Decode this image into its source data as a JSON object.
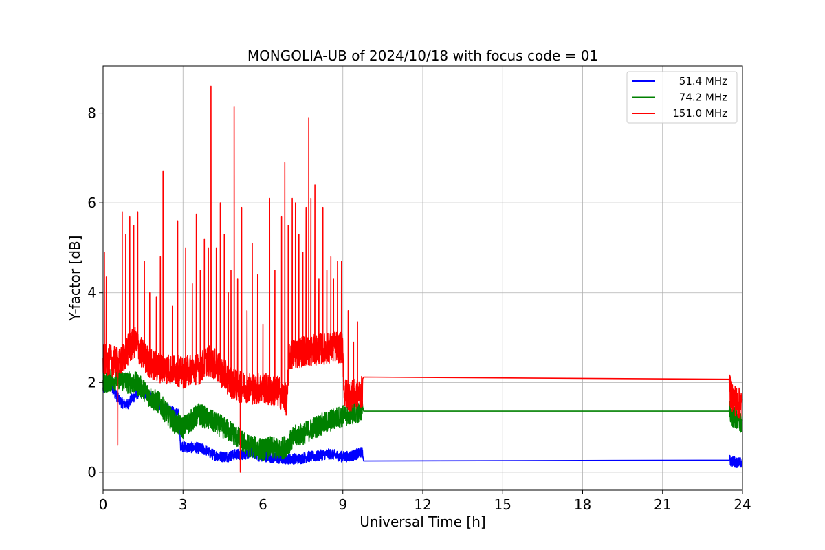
{
  "chart_data": {
    "type": "line",
    "title": "MONGOLIA-UB of 2024/10/18 with focus code = 01",
    "xlabel": "Universal Time [h]",
    "ylabel": "Y-factor [dB]",
    "xlim": [
      0,
      24
    ],
    "ylim": [
      -0.4,
      9.05
    ],
    "xticks": [
      0,
      3,
      6,
      9,
      12,
      15,
      18,
      21,
      24
    ],
    "yticks": [
      0,
      2,
      4,
      6,
      8
    ],
    "grid": true,
    "legend_position": "top-right",
    "series": [
      {
        "name": "51.4 MHz",
        "color": "#0000ff",
        "x": [
          0,
          0.3,
          0.5,
          0.7,
          0.9,
          1.1,
          1.3,
          1.5,
          1.7,
          1.9,
          2.1,
          2.3,
          2.5,
          2.7,
          2.85,
          2.9,
          3.2,
          3.5,
          3.8,
          4.1,
          4.4,
          4.7,
          5.0,
          5.3,
          5.6,
          5.9,
          6.2,
          6.5,
          6.8,
          7.1,
          7.4,
          7.7,
          8.0,
          8.3,
          8.6,
          8.9,
          9.2,
          9.5,
          9.75,
          9.78,
          23.5,
          23.55,
          23.8,
          24.0
        ],
        "y": [
          1.85,
          1.95,
          1.7,
          1.55,
          1.5,
          1.65,
          1.75,
          1.8,
          1.7,
          1.6,
          1.5,
          1.45,
          1.4,
          1.3,
          1.3,
          0.6,
          0.55,
          0.55,
          0.5,
          0.4,
          0.35,
          0.35,
          0.4,
          0.4,
          0.45,
          0.35,
          0.35,
          0.3,
          0.3,
          0.3,
          0.3,
          0.35,
          0.35,
          0.4,
          0.4,
          0.35,
          0.35,
          0.4,
          0.45,
          0.25,
          0.27,
          0.25,
          0.22,
          0.2
        ],
        "noise": 0.12
      },
      {
        "name": "74.2 MHz",
        "color": "#008000",
        "x": [
          0,
          0.3,
          0.6,
          0.9,
          1.2,
          1.5,
          1.8,
          2.1,
          2.4,
          2.7,
          3.0,
          3.3,
          3.6,
          3.9,
          4.2,
          4.5,
          4.8,
          5.1,
          5.4,
          5.7,
          6.0,
          6.3,
          6.6,
          6.9,
          7.2,
          7.5,
          7.8,
          8.1,
          8.4,
          8.7,
          9.0,
          9.3,
          9.6,
          9.75,
          9.78,
          23.5,
          23.55,
          23.8,
          24.0
        ],
        "y": [
          2.0,
          2.05,
          2.1,
          2.0,
          2.0,
          1.85,
          1.65,
          1.55,
          1.3,
          1.1,
          1.0,
          1.15,
          1.3,
          1.2,
          1.1,
          1.0,
          0.9,
          0.75,
          0.6,
          0.55,
          0.5,
          0.55,
          0.5,
          0.6,
          0.8,
          0.85,
          0.95,
          1.05,
          1.1,
          1.2,
          1.25,
          1.3,
          1.35,
          1.4,
          1.36,
          1.36,
          1.3,
          1.15,
          1.05
        ],
        "noise": 0.25
      },
      {
        "name": "151.0 MHz",
        "color": "#ff0000",
        "x": [
          0,
          0.3,
          0.6,
          0.9,
          1.2,
          1.5,
          1.8,
          2.1,
          2.4,
          2.7,
          3.0,
          3.3,
          3.6,
          3.9,
          4.2,
          4.5,
          4.8,
          5.1,
          5.4,
          5.7,
          6.0,
          6.3,
          6.6,
          6.9,
          7.0,
          7.2,
          7.5,
          7.8,
          8.1,
          8.4,
          8.7,
          9.0,
          9.05,
          9.3,
          9.6,
          9.75,
          9.78,
          23.5,
          23.55,
          23.8,
          24.0
        ],
        "y": [
          2.5,
          2.5,
          2.4,
          2.7,
          2.9,
          2.6,
          2.4,
          2.35,
          2.3,
          2.3,
          2.2,
          2.3,
          2.3,
          2.5,
          2.4,
          2.2,
          2.0,
          1.9,
          1.9,
          1.85,
          1.9,
          1.8,
          1.8,
          1.6,
          2.6,
          2.65,
          2.7,
          2.7,
          2.75,
          2.75,
          2.8,
          2.75,
          1.75,
          1.7,
          1.75,
          1.8,
          2.12,
          2.07,
          1.75,
          1.55,
          1.5
        ],
        "noise": 0.35,
        "spikes": [
          {
            "x": 0.05,
            "y": 4.9
          },
          {
            "x": 0.12,
            "y": 4.35
          },
          {
            "x": 0.55,
            "y": 0.6
          },
          {
            "x": 0.72,
            "y": 5.8
          },
          {
            "x": 0.85,
            "y": 5.3
          },
          {
            "x": 1.0,
            "y": 5.7
          },
          {
            "x": 1.15,
            "y": 5.5
          },
          {
            "x": 1.3,
            "y": 5.8
          },
          {
            "x": 1.55,
            "y": 4.7
          },
          {
            "x": 1.75,
            "y": 4.0
          },
          {
            "x": 2.0,
            "y": 3.9
          },
          {
            "x": 2.15,
            "y": 4.8
          },
          {
            "x": 2.25,
            "y": 6.7
          },
          {
            "x": 2.6,
            "y": 3.7
          },
          {
            "x": 2.8,
            "y": 5.6
          },
          {
            "x": 3.1,
            "y": 5.0
          },
          {
            "x": 3.35,
            "y": 4.2
          },
          {
            "x": 3.5,
            "y": 5.75
          },
          {
            "x": 3.65,
            "y": 4.5
          },
          {
            "x": 3.8,
            "y": 5.2
          },
          {
            "x": 3.95,
            "y": 5.0
          },
          {
            "x": 4.05,
            "y": 8.6
          },
          {
            "x": 4.25,
            "y": 5.0
          },
          {
            "x": 4.4,
            "y": 6.0
          },
          {
            "x": 4.55,
            "y": 5.3
          },
          {
            "x": 4.7,
            "y": 4.0
          },
          {
            "x": 4.8,
            "y": 4.5
          },
          {
            "x": 4.92,
            "y": 8.15
          },
          {
            "x": 5.05,
            "y": 4.3
          },
          {
            "x": 5.15,
            "y": 0.0
          },
          {
            "x": 5.2,
            "y": 5.9
          },
          {
            "x": 5.4,
            "y": 3.6
          },
          {
            "x": 5.6,
            "y": 5.1
          },
          {
            "x": 5.8,
            "y": 4.4
          },
          {
            "x": 6.0,
            "y": 3.3
          },
          {
            "x": 6.25,
            "y": 6.1
          },
          {
            "x": 6.45,
            "y": 4.5
          },
          {
            "x": 6.7,
            "y": 5.7
          },
          {
            "x": 6.82,
            "y": 6.9
          },
          {
            "x": 6.95,
            "y": 5.5
          },
          {
            "x": 7.1,
            "y": 6.1
          },
          {
            "x": 7.22,
            "y": 6.0
          },
          {
            "x": 7.35,
            "y": 5.3
          },
          {
            "x": 7.5,
            "y": 4.9
          },
          {
            "x": 7.62,
            "y": 5.9
          },
          {
            "x": 7.72,
            "y": 7.9
          },
          {
            "x": 7.8,
            "y": 6.1
          },
          {
            "x": 7.95,
            "y": 6.4
          },
          {
            "x": 8.1,
            "y": 4.3
          },
          {
            "x": 8.25,
            "y": 5.9
          },
          {
            "x": 8.4,
            "y": 4.5
          },
          {
            "x": 8.55,
            "y": 4.8
          },
          {
            "x": 8.65,
            "y": 4.3
          },
          {
            "x": 8.8,
            "y": 4.7
          },
          {
            "x": 8.95,
            "y": 4.7
          },
          {
            "x": 9.2,
            "y": 3.6
          },
          {
            "x": 9.4,
            "y": 2.9
          },
          {
            "x": 9.55,
            "y": 3.35
          }
        ]
      }
    ]
  }
}
